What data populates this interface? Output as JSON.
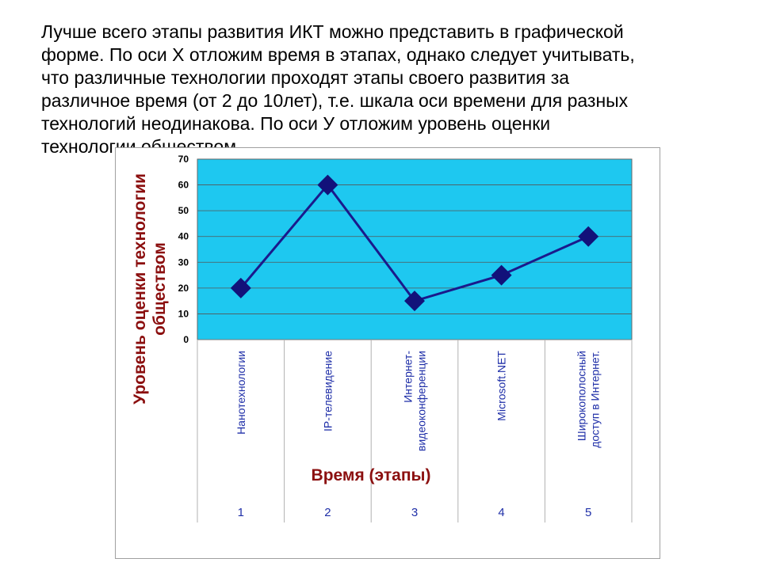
{
  "intro": {
    "lines": [
      "Лучше всего этапы развития ИКТ можно представить в графической",
      "форме. По оси Х отложим время в этапах, однако следует учитывать,",
      "что различные технологии проходят этапы своего развития за",
      "различное время (от 2 до 10лет), т.е. шкала оси времени для разных",
      "технологий неодинакова. По оси У отложим уровень оценки",
      "технологии обществом."
    ]
  },
  "colors": {
    "plot_background": "#1ec8f0",
    "series_line": "#1a1a8c",
    "marker": "#12127a",
    "axis_title": "#8b0f0f",
    "category_text": "#1f2fa8"
  },
  "chart_data": {
    "type": "line",
    "categories": [
      "1",
      "2",
      "3",
      "4",
      "5"
    ],
    "category_labels": [
      "Нанотехнологии",
      "IP-телевидение",
      "Интернет-видеоконференции",
      "Microsoft.NET",
      "Широкополосный доступ в Интернет."
    ],
    "category_label_lines": [
      [
        "Нанотехнологии"
      ],
      [
        "IP-телевидение"
      ],
      [
        "Интернет-",
        "видеоконференции"
      ],
      [
        "Microsoft.NET"
      ],
      [
        "Широкополосный",
        "доступ в Интернет."
      ]
    ],
    "series": [
      {
        "values": [
          20,
          60,
          15,
          25,
          40
        ]
      }
    ],
    "marker": "diamond",
    "xlabel": "Время (этапы)",
    "ylabel_lines": [
      "Уровень оценки технологии",
      "обществом"
    ],
    "ylim": [
      0,
      70
    ],
    "yticks": [
      0,
      10,
      20,
      30,
      40,
      50,
      60,
      70
    ],
    "grid": true
  }
}
